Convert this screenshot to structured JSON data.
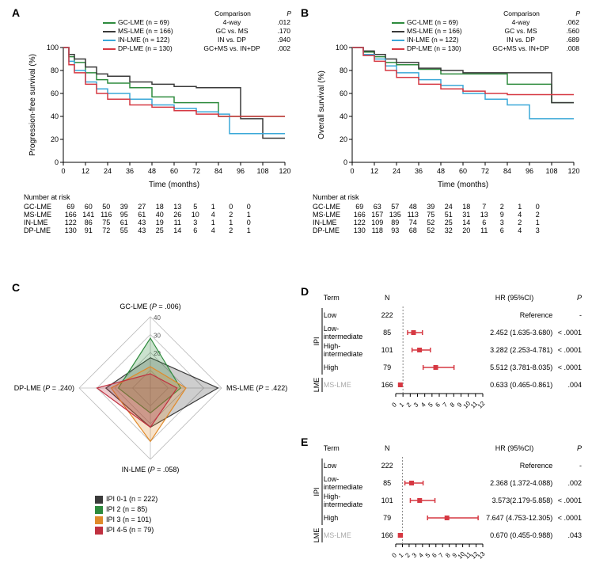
{
  "colors": {
    "GC": "#2e8b3d",
    "MS": "#3a3a3a",
    "IN": "#3aa8d8",
    "DP": "#d63842",
    "ipi01": "#3a3a3a",
    "ipi2": "#2e8b3d",
    "ipi3": "#e08a2a",
    "ipi45": "#c03040",
    "axis": "#000000",
    "ref_line": "#888888"
  },
  "panelA": {
    "label": "A",
    "ylabel": "Progression-free survival (%)",
    "xlabel": "Time (months)",
    "ylim": [
      0,
      100
    ],
    "xlim": [
      0,
      120
    ],
    "xticks": [
      0,
      12,
      24,
      36,
      48,
      60,
      72,
      84,
      96,
      108,
      120
    ],
    "yticks": [
      0,
      20,
      40,
      60,
      80,
      100
    ],
    "legend_header_comp": "Comparison",
    "legend_header_p": "P",
    "series": [
      {
        "name": "GC-LME",
        "n": 69,
        "color": "#2e8b3d",
        "comp": "4-way",
        "p": ".012",
        "pts": [
          [
            0,
            100
          ],
          [
            3,
            92
          ],
          [
            6,
            87
          ],
          [
            12,
            78
          ],
          [
            18,
            72
          ],
          [
            24,
            69
          ],
          [
            36,
            65
          ],
          [
            48,
            57
          ],
          [
            60,
            52
          ],
          [
            72,
            52
          ],
          [
            84,
            40
          ],
          [
            108,
            40
          ],
          [
            120,
            40
          ]
        ]
      },
      {
        "name": "MS-LME",
        "n": 166,
        "color": "#3a3a3a",
        "comp": "GC vs. MS",
        "p": ".170",
        "pts": [
          [
            0,
            100
          ],
          [
            3,
            94
          ],
          [
            6,
            90
          ],
          [
            12,
            83
          ],
          [
            18,
            77
          ],
          [
            24,
            75
          ],
          [
            36,
            70
          ],
          [
            48,
            68
          ],
          [
            60,
            66
          ],
          [
            72,
            65
          ],
          [
            84,
            65
          ],
          [
            96,
            38
          ],
          [
            108,
            21
          ],
          [
            120,
            21
          ]
        ]
      },
      {
        "name": "IN-LME",
        "n": 122,
        "color": "#3aa8d8",
        "comp": "IN vs. DP",
        "p": ".940",
        "pts": [
          [
            0,
            100
          ],
          [
            3,
            88
          ],
          [
            6,
            80
          ],
          [
            12,
            70
          ],
          [
            18,
            64
          ],
          [
            24,
            60
          ],
          [
            36,
            55
          ],
          [
            48,
            50
          ],
          [
            60,
            47
          ],
          [
            72,
            44
          ],
          [
            84,
            42
          ],
          [
            90,
            25
          ],
          [
            108,
            25
          ],
          [
            120,
            25
          ]
        ]
      },
      {
        "name": "DP-LME",
        "n": 130,
        "color": "#d63842",
        "comp": "GC+MS vs. IN+DP",
        "p": ".002",
        "pts": [
          [
            0,
            100
          ],
          [
            3,
            85
          ],
          [
            6,
            78
          ],
          [
            12,
            68
          ],
          [
            18,
            60
          ],
          [
            24,
            55
          ],
          [
            36,
            50
          ],
          [
            48,
            48
          ],
          [
            60,
            45
          ],
          [
            72,
            42
          ],
          [
            84,
            40
          ],
          [
            108,
            40
          ],
          [
            120,
            40
          ]
        ]
      }
    ],
    "at_risk_label": "Number at risk",
    "at_risk": [
      {
        "name": "GC-LME",
        "vals": [
          69,
          60,
          50,
          39,
          27,
          18,
          13,
          5,
          1,
          0,
          0
        ]
      },
      {
        "name": "MS-LME",
        "vals": [
          166,
          141,
          116,
          95,
          61,
          40,
          26,
          10,
          4,
          2,
          1
        ]
      },
      {
        "name": "IN-LME",
        "vals": [
          122,
          86,
          75,
          61,
          43,
          19,
          11,
          3,
          1,
          1,
          0
        ]
      },
      {
        "name": "DP-LME",
        "vals": [
          130,
          91,
          72,
          55,
          43,
          25,
          14,
          6,
          4,
          2,
          1
        ]
      }
    ]
  },
  "panelB": {
    "label": "B",
    "ylabel": "Overall survival (%)",
    "xlabel": "Time (months)",
    "ylim": [
      0,
      100
    ],
    "xlim": [
      0,
      120
    ],
    "xticks": [
      0,
      12,
      24,
      36,
      48,
      60,
      72,
      84,
      96,
      108,
      120
    ],
    "yticks": [
      0,
      20,
      40,
      60,
      80,
      100
    ],
    "legend_header_comp": "Comparison",
    "legend_header_p": "P",
    "series": [
      {
        "name": "GC-LME",
        "n": 69,
        "color": "#2e8b3d",
        "comp": "4-way",
        "p": ".062",
        "pts": [
          [
            0,
            100
          ],
          [
            6,
            96
          ],
          [
            12,
            92
          ],
          [
            18,
            87
          ],
          [
            24,
            85
          ],
          [
            36,
            81
          ],
          [
            48,
            77
          ],
          [
            60,
            77
          ],
          [
            72,
            77
          ],
          [
            84,
            68
          ],
          [
            108,
            52
          ],
          [
            120,
            52
          ]
        ]
      },
      {
        "name": "MS-LME",
        "n": 166,
        "color": "#3a3a3a",
        "comp": "GC vs. MS",
        "p": ".560",
        "pts": [
          [
            0,
            100
          ],
          [
            6,
            97
          ],
          [
            12,
            94
          ],
          [
            18,
            90
          ],
          [
            24,
            87
          ],
          [
            36,
            82
          ],
          [
            48,
            80
          ],
          [
            60,
            78
          ],
          [
            72,
            78
          ],
          [
            84,
            78
          ],
          [
            96,
            78
          ],
          [
            108,
            52
          ],
          [
            120,
            52
          ]
        ]
      },
      {
        "name": "IN-LME",
        "n": 122,
        "color": "#3aa8d8",
        "comp": "IN vs. DP",
        "p": ".689",
        "pts": [
          [
            0,
            100
          ],
          [
            6,
            94
          ],
          [
            12,
            90
          ],
          [
            18,
            84
          ],
          [
            24,
            78
          ],
          [
            36,
            72
          ],
          [
            48,
            67
          ],
          [
            60,
            60
          ],
          [
            72,
            55
          ],
          [
            84,
            50
          ],
          [
            96,
            38
          ],
          [
            120,
            38
          ]
        ]
      },
      {
        "name": "DP-LME",
        "n": 130,
        "color": "#d63842",
        "comp": "GC+MS vs. IN+DP",
        "p": ".008",
        "pts": [
          [
            0,
            100
          ],
          [
            6,
            93
          ],
          [
            12,
            88
          ],
          [
            18,
            80
          ],
          [
            24,
            74
          ],
          [
            36,
            68
          ],
          [
            48,
            64
          ],
          [
            60,
            62
          ],
          [
            72,
            60
          ],
          [
            84,
            59
          ],
          [
            108,
            59
          ],
          [
            120,
            59
          ]
        ]
      }
    ],
    "at_risk_label": "Number at risk",
    "at_risk": [
      {
        "name": "GC-LME",
        "vals": [
          69,
          63,
          57,
          48,
          39,
          24,
          18,
          7,
          2,
          1,
          0
        ]
      },
      {
        "name": "MS-LME",
        "vals": [
          166,
          157,
          135,
          113,
          75,
          51,
          31,
          13,
          9,
          4,
          2
        ]
      },
      {
        "name": "IN-LME",
        "vals": [
          122,
          109,
          89,
          74,
          52,
          25,
          14,
          6,
          3,
          2,
          1
        ]
      },
      {
        "name": "DP-LME",
        "vals": [
          130,
          118,
          93,
          68,
          52,
          32,
          20,
          11,
          6,
          4,
          3
        ]
      }
    ]
  },
  "panelC": {
    "label": "C",
    "axes": [
      {
        "name": "GC-LME",
        "p": ".006"
      },
      {
        "name": "MS-LME",
        "p": ".422"
      },
      {
        "name": "IN-LME",
        "p": ".058"
      },
      {
        "name": "DP-LME",
        "p": ".240"
      }
    ],
    "rings": [
      10,
      20,
      30,
      40
    ],
    "ring_labels": [
      "40",
      "30",
      "20"
    ],
    "legend": [
      {
        "label": "IPI 0-1",
        "n": 222,
        "color": "#3a3a3a"
      },
      {
        "label": "IPI 2",
        "n": 85,
        "color": "#2e8b3d"
      },
      {
        "label": "IPI 3",
        "n": 101,
        "color": "#e08a2a"
      },
      {
        "label": "IPI 4-5",
        "n": 79,
        "color": "#c03040"
      }
    ],
    "polys": [
      {
        "color": "#3a3a3a",
        "fill": "rgba(58,58,58,0.25)",
        "vals": [
          17,
          38,
          22,
          25
        ]
      },
      {
        "color": "#2e8b3d",
        "fill": "rgba(46,139,61,0.25)",
        "vals": [
          28,
          17,
          14,
          18
        ]
      },
      {
        "color": "#e08a2a",
        "fill": "rgba(224,138,42,0.25)",
        "vals": [
          12,
          20,
          30,
          22
        ]
      },
      {
        "color": "#c03040",
        "fill": "rgba(192,48,64,0.25)",
        "vals": [
          8,
          15,
          22,
          30
        ]
      }
    ]
  },
  "panelD": {
    "label": "D",
    "xticks": [
      0,
      1,
      2,
      3,
      4,
      5,
      6,
      7,
      8,
      9,
      10,
      11,
      12
    ],
    "header": {
      "term": "Term",
      "n": "N",
      "hr": "HR (95%CI)",
      "p": "P"
    },
    "groups": [
      {
        "group": "IPI",
        "rows": [
          {
            "term": "Low",
            "n": 222,
            "hr": null,
            "lo": null,
            "hi": null,
            "hr_text": "Reference",
            "p": "-"
          },
          {
            "term": "Low-intermediate",
            "n": 85,
            "hr": 2.452,
            "lo": 1.635,
            "hi": 3.68,
            "hr_text": "2.452 (1.635-3.680)",
            "p": "< .0001"
          },
          {
            "term": "High-intermediate",
            "n": 101,
            "hr": 3.282,
            "lo": 2.253,
            "hi": 4.781,
            "hr_text": "3.282 (2.253-4.781)",
            "p": "< .0001"
          },
          {
            "term": "High",
            "n": 79,
            "hr": 5.512,
            "lo": 3.781,
            "hi": 8.035,
            "hr_text": "5.512 (3.781-8.035)",
            "p": "< .0001"
          }
        ]
      },
      {
        "group": "LME",
        "rows": [
          {
            "term": "MS-LME",
            "n": 166,
            "hr": 0.633,
            "lo": 0.465,
            "hi": 0.861,
            "hr_text": "0.633 (0.465-0.861)",
            "p": ".004",
            "muted": true
          }
        ]
      }
    ]
  },
  "panelE": {
    "label": "E",
    "xticks": [
      0,
      1,
      2,
      3,
      4,
      5,
      6,
      7,
      8,
      9,
      10,
      11,
      12,
      13
    ],
    "header": {
      "term": "Term",
      "n": "N",
      "hr": "HR (95%CI)",
      "p": "P"
    },
    "groups": [
      {
        "group": "IPI",
        "rows": [
          {
            "term": "Low",
            "n": 222,
            "hr": null,
            "lo": null,
            "hi": null,
            "hr_text": "Reference",
            "p": "-"
          },
          {
            "term": "Low-intermediate",
            "n": 85,
            "hr": 2.368,
            "lo": 1.372,
            "hi": 4.088,
            "hr_text": "2.368 (1.372-4.088)",
            "p": ".002"
          },
          {
            "term": "High-intermediate",
            "n": 101,
            "hr": 3.573,
            "lo": 2.179,
            "hi": 5.858,
            "hr_text": "3.573(2.179-5.858)",
            "p": "< .0001"
          },
          {
            "term": "High",
            "n": 79,
            "hr": 7.647,
            "lo": 4.753,
            "hi": 12.305,
            "hr_text": "7.647 (4.753-12.305)",
            "p": "< .0001"
          }
        ]
      },
      {
        "group": "LME",
        "rows": [
          {
            "term": "MS-LME",
            "n": 166,
            "hr": 0.67,
            "lo": 0.455,
            "hi": 0.988,
            "hr_text": "0.670 (0.455-0.988)",
            "p": ".043",
            "muted": true
          }
        ]
      }
    ]
  }
}
